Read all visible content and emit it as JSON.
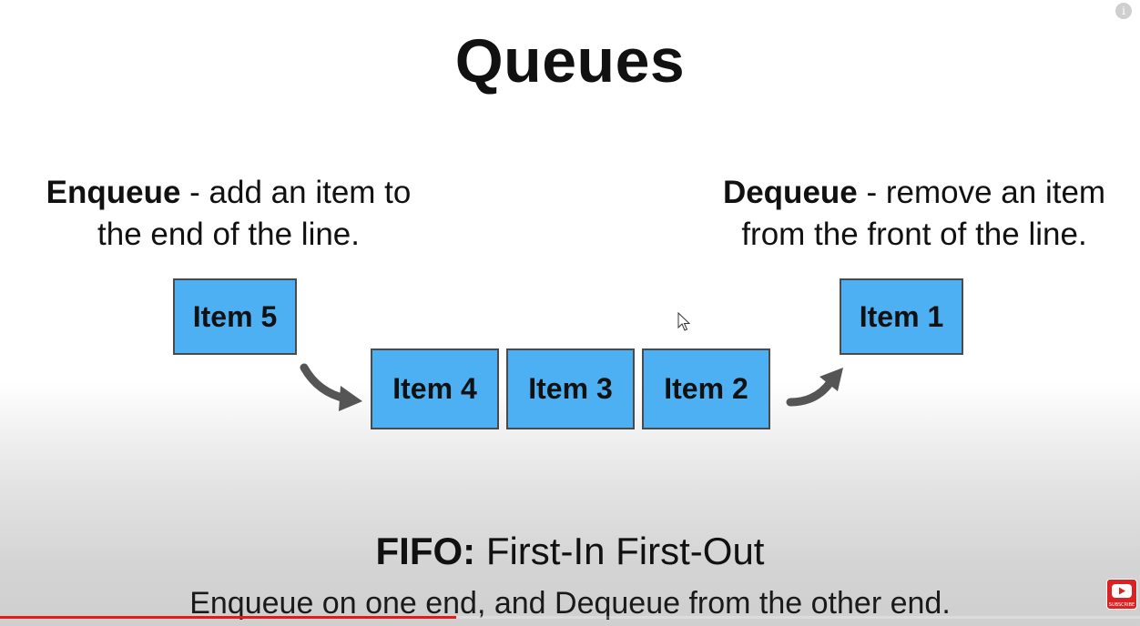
{
  "slide": {
    "title": "Queues",
    "enqueue": {
      "term": "Enqueue",
      "line1_rest": " - add an item to",
      "line2": "the end of the line."
    },
    "dequeue": {
      "term": "Dequeue",
      "line1_rest": " - remove an item",
      "line2": "from the front of the line."
    },
    "items": {
      "item5": "Item 5",
      "item4": "Item 4",
      "item3": "Item 3",
      "item2": "Item 2",
      "item1": "Item 1"
    },
    "fifo": {
      "label": "FIFO:",
      "text": " First-In First-Out"
    },
    "caption": "Enqueue on one end, and Dequeue from the other end."
  },
  "player": {
    "progress_fraction": 0.4,
    "progress_color": "#e51b1b",
    "info_icon": "info-icon",
    "subscribe_icon": "play-icon",
    "subscribe_label": "SUBSCRIBE"
  },
  "colors": {
    "item_box": "#4db0f2",
    "item_border": "#4a4a4a",
    "arrow": "#555555"
  }
}
